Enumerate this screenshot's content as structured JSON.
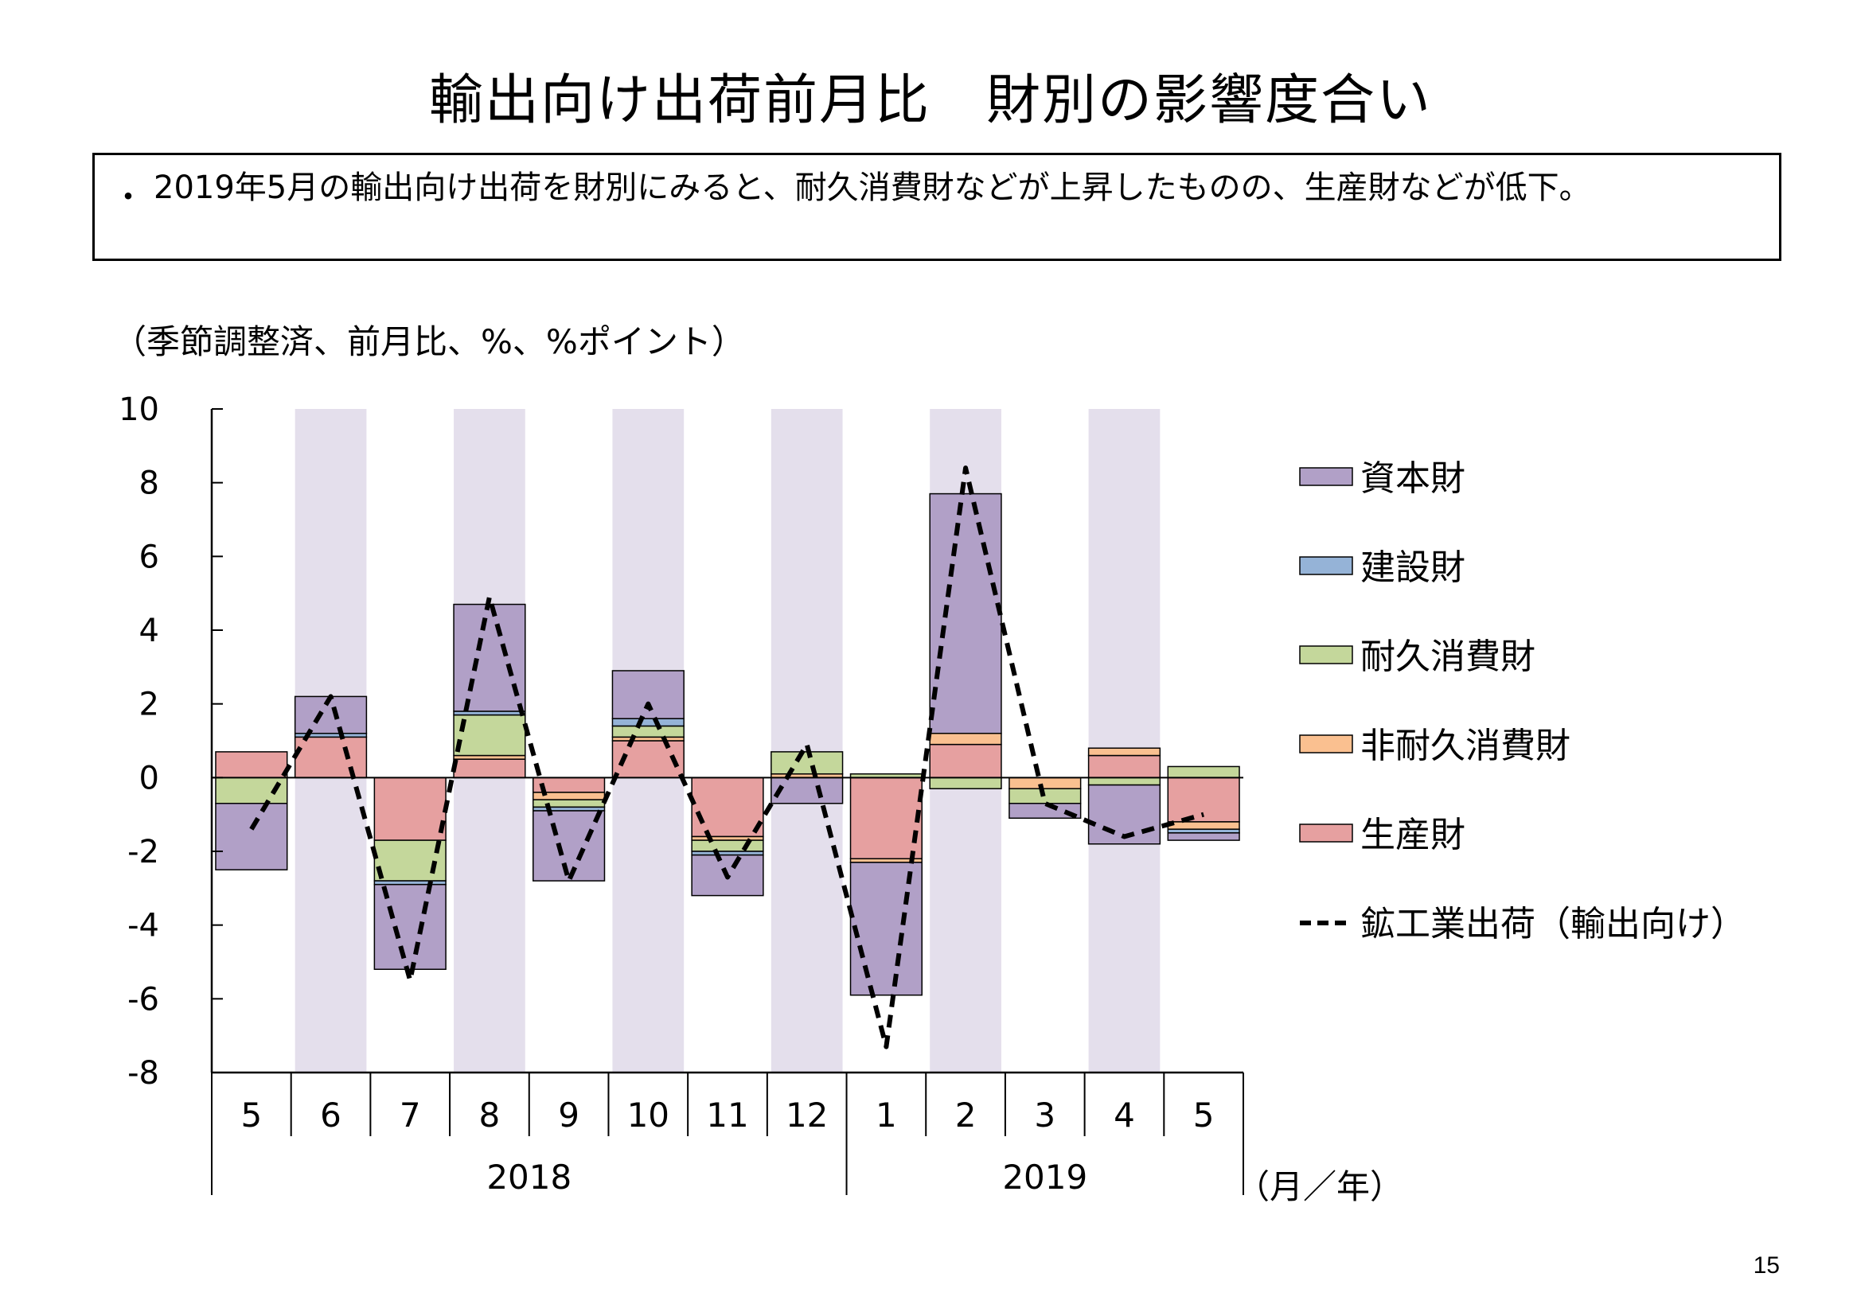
{
  "page": {
    "title": "輸出向け出荷前月比　財別の影響度合い",
    "summary_bullet": "・",
    "summary": "2019年5月の輸出向け出荷を財別にみると、耐久消費財などが上昇したものの、生産財などが低下。",
    "unit_note": "（季節調整済、前月比、%、%ポイント）",
    "page_number": "15"
  },
  "chart_data": {
    "type": "bar",
    "stacked": true,
    "title": "",
    "xlabel": "（月／年）",
    "ylabel": "",
    "ylim": [
      -8,
      10
    ],
    "yticks": [
      10,
      8,
      6,
      4,
      2,
      0,
      -2,
      -4,
      -6,
      -8
    ],
    "categories": [
      "5",
      "6",
      "7",
      "8",
      "9",
      "10",
      "11",
      "12",
      "1",
      "2",
      "3",
      "4",
      "5"
    ],
    "year_groups": [
      {
        "label": "2018",
        "start": 0,
        "end": 7
      },
      {
        "label": "2019",
        "start": 8,
        "end": 12
      }
    ],
    "shaded_months": [
      "6",
      "8",
      "10",
      "12",
      "2",
      "4"
    ],
    "shade_color": "#E4DFEC",
    "grid": false,
    "legend_position": "right",
    "series": [
      {
        "name": "生産財",
        "kind": "bar",
        "color": "#E6A0A0",
        "values": [
          0.7,
          1.1,
          -1.7,
          0.5,
          -0.4,
          1.0,
          -1.6,
          0.0,
          -2.2,
          0.9,
          0.0,
          0.6,
          -1.2
        ]
      },
      {
        "name": "非耐久消費財",
        "kind": "bar",
        "color": "#FAC090",
        "values": [
          0.0,
          0.0,
          0.0,
          0.1,
          -0.2,
          0.1,
          -0.1,
          0.1,
          -0.1,
          0.3,
          -0.3,
          0.2,
          -0.2
        ]
      },
      {
        "name": "耐久消費財",
        "kind": "bar",
        "color": "#C4D79B",
        "values": [
          -0.7,
          0.0,
          -1.1,
          1.1,
          -0.2,
          0.3,
          -0.3,
          0.6,
          0.1,
          -0.3,
          -0.4,
          -0.2,
          0.3
        ]
      },
      {
        "name": "建設財",
        "kind": "bar",
        "color": "#95B3D7",
        "values": [
          0.0,
          0.1,
          -0.1,
          0.1,
          -0.1,
          0.2,
          -0.1,
          0.0,
          0.0,
          0.0,
          0.0,
          0.0,
          -0.1
        ]
      },
      {
        "name": "資本財",
        "kind": "bar",
        "color": "#B1A0C7",
        "values": [
          -1.8,
          1.0,
          -2.3,
          2.9,
          -1.9,
          1.3,
          -1.1,
          -0.7,
          -3.6,
          6.5,
          -0.4,
          -1.6,
          -0.2
        ]
      },
      {
        "name": "鉱工業出荷（輸出向け）",
        "kind": "line",
        "color": "#000000",
        "dash": true,
        "values": [
          -1.4,
          2.2,
          -5.5,
          4.9,
          -2.8,
          2.0,
          -2.7,
          0.9,
          -7.3,
          8.4,
          -0.7,
          -1.6,
          -1.0
        ]
      }
    ],
    "legend_order": [
      "資本財",
      "建設財",
      "耐久消費財",
      "非耐久消費財",
      "生産財",
      "鉱工業出荷（輸出向け）"
    ]
  }
}
